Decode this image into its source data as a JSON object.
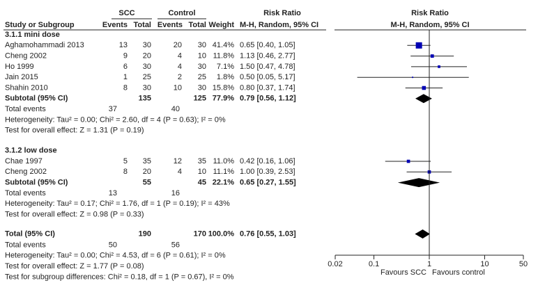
{
  "chart_data": {
    "type": "forest",
    "headers": {
      "group1": "SCC",
      "group2": "Control",
      "effect": "Risk Ratio",
      "plot_effect": "Risk Ratio",
      "study": "Study or Subgroup",
      "events1": "Events",
      "total1": "Total",
      "events2": "Events",
      "total2": "Total",
      "weight": "Weight",
      "method": "M-H, Random, 95% CI",
      "plot_method": "M-H, Random, 95% CI"
    },
    "subgroups": [
      {
        "title": "3.1.1 mini dose",
        "studies": [
          {
            "name": "Aghamohammadi 2013",
            "events1": 13,
            "total1": 30,
            "events2": 20,
            "total2": 30,
            "weight": 41.4,
            "weight_label": "41.4%",
            "rr": 0.65,
            "lo": 0.4,
            "hi": 1.05,
            "rr_label": "0.65 [0.40, 1.05]"
          },
          {
            "name": "Cheng 2002",
            "events1": 9,
            "total1": 20,
            "events2": 4,
            "total2": 10,
            "weight": 11.8,
            "weight_label": "11.8%",
            "rr": 1.13,
            "lo": 0.46,
            "hi": 2.77,
            "rr_label": "1.13 [0.46, 2.77]"
          },
          {
            "name": "Ho 1999",
            "events1": 6,
            "total1": 30,
            "events2": 4,
            "total2": 30,
            "weight": 7.1,
            "weight_label": "7.1%",
            "rr": 1.5,
            "lo": 0.47,
            "hi": 4.78,
            "rr_label": "1.50 [0.47, 4.78]"
          },
          {
            "name": "Jain 2015",
            "events1": 1,
            "total1": 25,
            "events2": 2,
            "total2": 25,
            "weight": 1.8,
            "weight_label": "1.8%",
            "rr": 0.5,
            "lo": 0.05,
            "hi": 5.17,
            "rr_label": "0.50 [0.05, 5.17]"
          },
          {
            "name": "Shahin 2010",
            "events1": 8,
            "total1": 30,
            "events2": 10,
            "total2": 30,
            "weight": 15.8,
            "weight_label": "15.8%",
            "rr": 0.8,
            "lo": 0.37,
            "hi": 1.74,
            "rr_label": "0.80 [0.37, 1.74]"
          }
        ],
        "subtotal": {
          "label": "Subtotal (95% CI)",
          "total1": 135,
          "total2": 125,
          "weight": 77.9,
          "weight_label": "77.9%",
          "rr": 0.79,
          "lo": 0.56,
          "hi": 1.12,
          "rr_label": "0.79 [0.56, 1.12]"
        },
        "events": {
          "label": "Total events",
          "events1": 37,
          "events2": 40
        },
        "heterogeneity": "Heterogeneity: Tau² = 0.00; Chi² = 2.60, df = 4 (P = 0.63); I² = 0%",
        "overall": "Test for overall effect: Z = 1.31 (P = 0.19)"
      },
      {
        "title": "3.1.2 low dose",
        "studies": [
          {
            "name": "Chae 1997",
            "events1": 5,
            "total1": 35,
            "events2": 12,
            "total2": 35,
            "weight": 11.0,
            "weight_label": "11.0%",
            "rr": 0.42,
            "lo": 0.16,
            "hi": 1.06,
            "rr_label": "0.42 [0.16, 1.06]"
          },
          {
            "name": "Cheng 2002",
            "events1": 8,
            "total1": 20,
            "events2": 4,
            "total2": 10,
            "weight": 11.1,
            "weight_label": "11.1%",
            "rr": 1.0,
            "lo": 0.39,
            "hi": 2.53,
            "rr_label": "1.00 [0.39, 2.53]"
          }
        ],
        "subtotal": {
          "label": "Subtotal (95% CI)",
          "total1": 55,
          "total2": 45,
          "weight": 22.1,
          "weight_label": "22.1%",
          "rr": 0.65,
          "lo": 0.27,
          "hi": 1.55,
          "rr_label": "0.65 [0.27, 1.55]"
        },
        "events": {
          "label": "Total events",
          "events1": 13,
          "events2": 16
        },
        "heterogeneity": "Heterogeneity: Tau² = 0.17; Chi² = 1.76, df = 1 (P = 0.19); I² = 43%",
        "overall": "Test for overall effect: Z = 0.98 (P = 0.33)"
      }
    ],
    "total": {
      "label": "Total (95% CI)",
      "total1": 190,
      "total2": 170,
      "weight": 100.0,
      "weight_label": "100.0%",
      "rr": 0.76,
      "lo": 0.55,
      "hi": 1.03,
      "rr_label": "0.76 [0.55, 1.03]"
    },
    "total_events": {
      "label": "Total events",
      "events1": 50,
      "events2": 56
    },
    "heterogeneity": "Heterogeneity: Tau² = 0.00; Chi² = 4.53, df = 6 (P = 0.61); I² = 0%",
    "overall": "Test for overall effect: Z = 1.77 (P = 0.08)",
    "subgroup_differences": "Test for subgroup differences: Chi² = 0.18, df = 1 (P = 0.67), I² = 0%",
    "log_scale": true,
    "xlim": [
      0.02,
      50
    ],
    "xticks": [
      0.02,
      0.1,
      1,
      10,
      50
    ],
    "x_labels": [
      "Favours SCC",
      "Favours control"
    ],
    "square_color": "#0000b4",
    "diamond_color": "#000000"
  }
}
